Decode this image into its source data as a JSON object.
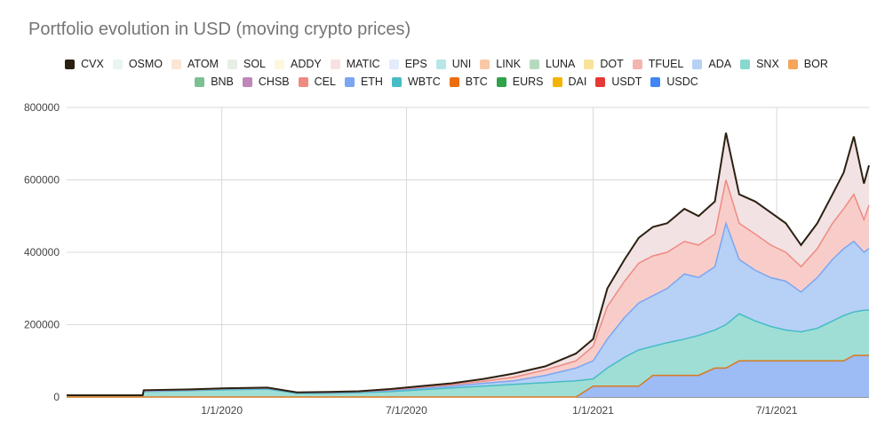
{
  "title": "Portfolio evolution in USD (moving crypto prices)",
  "chart_data": {
    "type": "area",
    "stacked": true,
    "x_ticks": [
      "1/1/2020",
      "7/1/2020",
      "1/1/2021",
      "7/1/2021"
    ],
    "y_ticks": [
      "0",
      "200000",
      "400000",
      "600000",
      "800000"
    ],
    "ylim": [
      0,
      800000
    ],
    "xlim": [
      "2019-08-01",
      "2021-09-30"
    ],
    "legend_position": "top",
    "grid": true,
    "legend": [
      {
        "name": "CVX",
        "color": "#2b2111"
      },
      {
        "name": "OSMO",
        "color": "#e8f5f1"
      },
      {
        "name": "ATOM",
        "color": "#fbe6d5"
      },
      {
        "name": "SOL",
        "color": "#e7efe5"
      },
      {
        "name": "ADDY",
        "color": "#fdf7dd"
      },
      {
        "name": "MATIC",
        "color": "#f9e1e1"
      },
      {
        "name": "EPS",
        "color": "#e3ecfd"
      },
      {
        "name": "UNI",
        "color": "#b7e6e6"
      },
      {
        "name": "LINK",
        "color": "#f9c9a6"
      },
      {
        "name": "LUNA",
        "color": "#b7dabf"
      },
      {
        "name": "DOT",
        "color": "#f9e29a"
      },
      {
        "name": "TFUEL",
        "color": "#f3b5b0"
      },
      {
        "name": "ADA",
        "color": "#b7d0f6"
      },
      {
        "name": "SNX",
        "color": "#88d8cf"
      },
      {
        "name": "BOR",
        "color": "#f6a55a"
      },
      {
        "name": "BNB",
        "color": "#7dc092"
      },
      {
        "name": "CHSB",
        "color": "#bf86b8"
      },
      {
        "name": "CEL",
        "color": "#ef8a80"
      },
      {
        "name": "ETH",
        "color": "#7aa6f2"
      },
      {
        "name": "WBTC",
        "color": "#46bcc6"
      },
      {
        "name": "BTC",
        "color": "#ec6d0c"
      },
      {
        "name": "EURS",
        "color": "#2fa24a"
      },
      {
        "name": "DAI",
        "color": "#f4b400"
      },
      {
        "name": "USDT",
        "color": "#e53935"
      },
      {
        "name": "USDC",
        "color": "#4285f4"
      }
    ],
    "series_estimates": {
      "dates": [
        "2019-08-01",
        "2019-10-15",
        "2019-10-16",
        "2019-12-01",
        "2020-01-01",
        "2020-02-15",
        "2020-03-15",
        "2020-04-15",
        "2020-05-15",
        "2020-06-15",
        "2020-07-15",
        "2020-08-15",
        "2020-09-15",
        "2020-10-15",
        "2020-11-15",
        "2020-12-15",
        "2021-01-01",
        "2021-01-15",
        "2021-02-01",
        "2021-02-15",
        "2021-03-01",
        "2021-03-15",
        "2021-04-01",
        "2021-04-15",
        "2021-05-01",
        "2021-05-12",
        "2021-05-25",
        "2021-06-10",
        "2021-06-25",
        "2021-07-10",
        "2021-07-25",
        "2021-08-10",
        "2021-08-25",
        "2021-09-05",
        "2021-09-15",
        "2021-09-25",
        "2021-09-30"
      ],
      "stable_usdc": [
        0,
        0,
        0,
        0,
        0,
        0,
        0,
        0,
        0,
        0,
        0,
        0,
        0,
        0,
        0,
        0,
        30000,
        30000,
        30000,
        30000,
        60000,
        60000,
        60000,
        60000,
        80000,
        80000,
        100000,
        100000,
        100000,
        100000,
        100000,
        100000,
        100000,
        100000,
        115000,
        115000,
        115000
      ],
      "snx_top": [
        5000,
        5000,
        15000,
        18000,
        20000,
        22000,
        10000,
        10000,
        12000,
        15000,
        20000,
        25000,
        30000,
        35000,
        40000,
        45000,
        50000,
        80000,
        110000,
        130000,
        140000,
        150000,
        160000,
        170000,
        185000,
        200000,
        230000,
        210000,
        195000,
        185000,
        180000,
        190000,
        210000,
        225000,
        235000,
        240000,
        240000
      ],
      "eth_top": [
        5000,
        5000,
        16000,
        19000,
        22000,
        24000,
        12000,
        12000,
        14000,
        18000,
        24000,
        30000,
        38000,
        45000,
        60000,
        80000,
        100000,
        160000,
        220000,
        260000,
        280000,
        300000,
        340000,
        330000,
        360000,
        480000,
        380000,
        350000,
        330000,
        320000,
        290000,
        330000,
        380000,
        410000,
        430000,
        400000,
        410000
      ],
      "cel_top": [
        5000,
        5000,
        18000,
        20000,
        23000,
        25000,
        13000,
        13000,
        15000,
        20000,
        27000,
        34000,
        44000,
        55000,
        75000,
        100000,
        140000,
        250000,
        320000,
        370000,
        390000,
        400000,
        430000,
        420000,
        450000,
        600000,
        480000,
        450000,
        420000,
        400000,
        360000,
        410000,
        480000,
        520000,
        560000,
        490000,
        530000
      ],
      "total_cvx": [
        5000,
        5000,
        19000,
        21000,
        24000,
        26000,
        13000,
        14000,
        16000,
        22000,
        30000,
        38000,
        50000,
        65000,
        85000,
        120000,
        160000,
        300000,
        380000,
        440000,
        470000,
        480000,
        520000,
        500000,
        540000,
        730000,
        560000,
        540000,
        510000,
        480000,
        420000,
        480000,
        560000,
        620000,
        720000,
        590000,
        640000
      ]
    }
  }
}
